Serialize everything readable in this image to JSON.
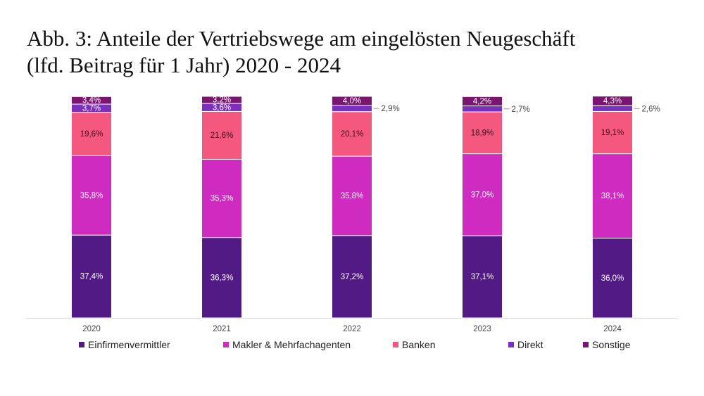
{
  "title_line1": "Abb. 3: Anteile der Vertriebswege am eingelösten Neugeschäft",
  "title_line2": "(lfd. Beitrag für 1 Jahr) 2020 - 2024",
  "chart_data": {
    "type": "bar",
    "stacked": true,
    "title": "Abb. 3: Anteile der Vertriebswege am eingelösten Neugeschäft (lfd. Beitrag für 1 Jahr) 2020 - 2024",
    "xlabel": "",
    "ylabel": "",
    "ylim": [
      0,
      100
    ],
    "grid": false,
    "legend_position": "bottom",
    "categories": [
      "2020",
      "2021",
      "2022",
      "2023",
      "2024"
    ],
    "series": [
      {
        "name": "Einfirmenvermittler",
        "color": "#511a85",
        "label_color": "#ffffff",
        "values": [
          37.4,
          36.3,
          37.2,
          37.1,
          36.0
        ],
        "labels": [
          "37,4%",
          "36,3%",
          "37,2%",
          "37,1%",
          "36,0%"
        ]
      },
      {
        "name": "Makler & Mehrfachagenten",
        "color": "#d02bc0",
        "label_color": "#ffffff",
        "values": [
          35.8,
          35.3,
          35.8,
          37.0,
          38.1
        ],
        "labels": [
          "35,8%",
          "35,3%",
          "35,8%",
          "37,0%",
          "38,1%"
        ]
      },
      {
        "name": "Banken",
        "color": "#f5587e",
        "label_color": "#3a1020",
        "values": [
          19.6,
          21.6,
          20.1,
          18.9,
          19.1
        ],
        "labels": [
          "19,6%",
          "21,6%",
          "20,1%",
          "18,9%",
          "19,1%"
        ]
      },
      {
        "name": "Direkt",
        "color": "#7b2fbe",
        "label_color": "#ffffff",
        "values": [
          3.7,
          3.6,
          2.9,
          2.7,
          2.6
        ],
        "labels": [
          "3,7%",
          "3,6%",
          "2,9%",
          "2,7%",
          "2,6%"
        ],
        "label_outside": [
          false,
          false,
          true,
          true,
          true
        ]
      },
      {
        "name": "Sonstige",
        "color": "#7a1670",
        "label_color": "#ffffff",
        "values": [
          3.4,
          3.2,
          4.0,
          4.2,
          4.3
        ],
        "labels": [
          "3,4%",
          "3,2%",
          "4,0%",
          "4,2%",
          "4,3%"
        ]
      }
    ]
  }
}
